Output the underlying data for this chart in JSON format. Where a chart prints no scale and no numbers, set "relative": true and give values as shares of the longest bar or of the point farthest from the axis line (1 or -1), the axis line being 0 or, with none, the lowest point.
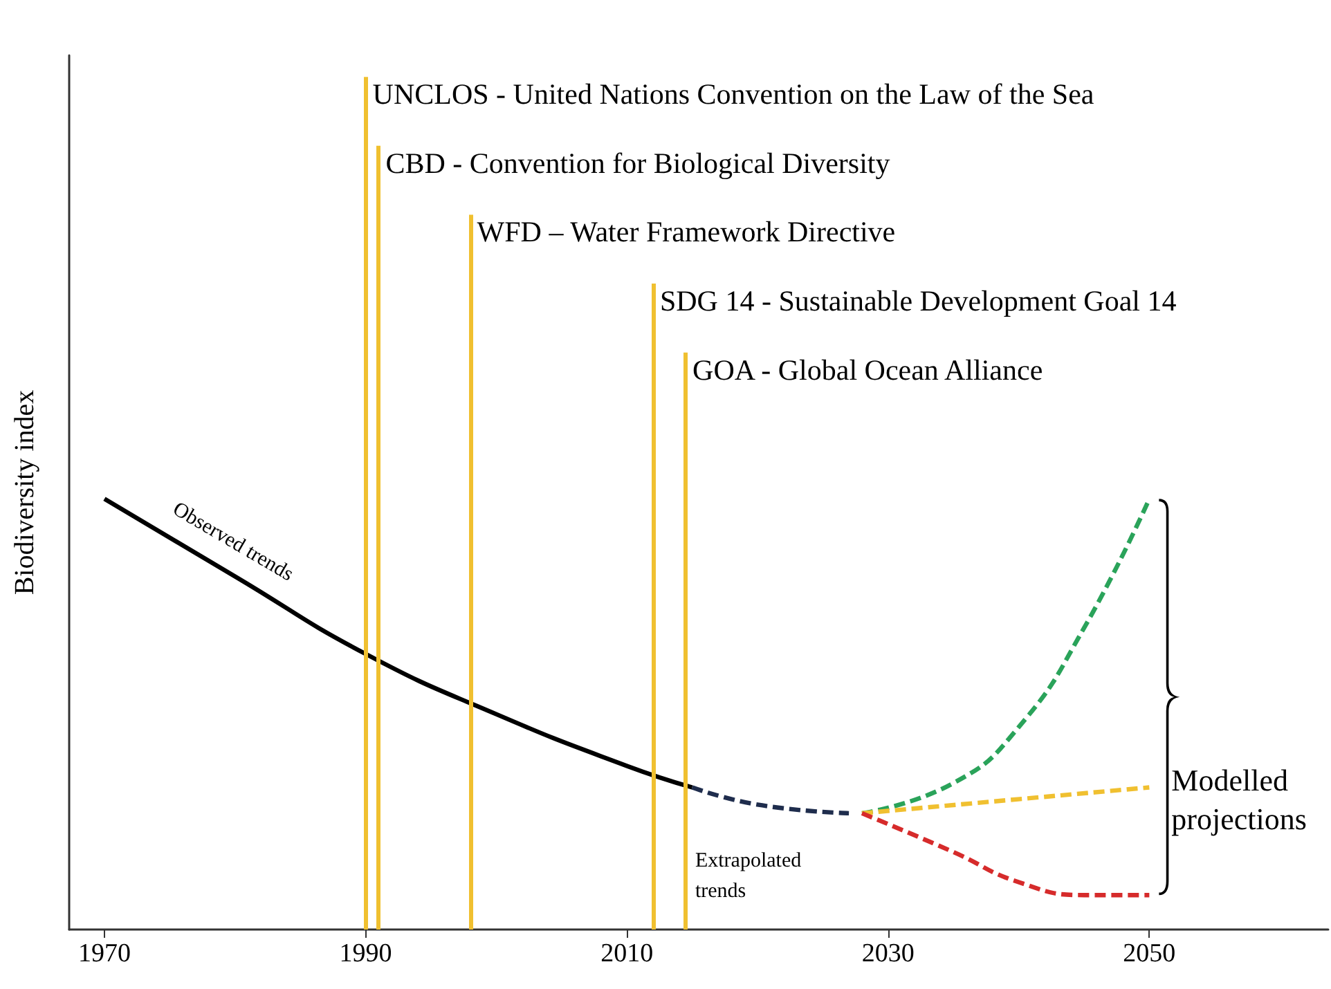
{
  "chart_data": {
    "type": "line",
    "relative": true,
    "ylabel": "Biodiversity index",
    "xlim": [
      1967.3,
      2063.7
    ],
    "xticks": [
      1970,
      1990,
      2010,
      2030,
      2050
    ],
    "grid": false,
    "marker": "none",
    "series": [
      {
        "color": "#000000",
        "line_style": "solid",
        "x": [
          1970,
          1980,
          1990,
          2000,
          2010,
          2015
        ],
        "values": [
          1.0,
          0.82,
          0.64,
          0.5,
          0.38,
          0.33
        ]
      },
      {
        "color": "#1f2d4d",
        "line_style": "dashed",
        "x": [
          2015,
          2020,
          2027
        ],
        "values": [
          0.33,
          0.29,
          0.27
        ]
      },
      {
        "color": "#2aa35a",
        "line_style": "dashed",
        "x": [
          2028,
          2035,
          2040,
          2045,
          2050
        ],
        "values": [
          0.27,
          0.34,
          0.47,
          0.7,
          1.0
        ]
      },
      {
        "color": "#f0c030",
        "line_style": "dashed",
        "x": [
          2028,
          2050
        ],
        "values": [
          0.27,
          0.33
        ]
      },
      {
        "color": "#d62b2b",
        "line_style": "dashed",
        "x": [
          2028,
          2035,
          2040,
          2045,
          2050
        ],
        "values": [
          0.27,
          0.18,
          0.11,
          0.08,
          0.08
        ]
      }
    ],
    "ref_lines": [
      {
        "axis": "x",
        "value": 1990,
        "label": "UNCLOS - United Nations Convention on the Law of the Sea",
        "color": "#f0c030"
      },
      {
        "axis": "x",
        "value": 1991,
        "label": "CBD - Convention for Biological Diversity",
        "color": "#f0c030"
      },
      {
        "axis": "x",
        "value": 1998,
        "label": "WFD – Water Framework Directive",
        "color": "#f0c030"
      },
      {
        "axis": "x",
        "value": 2012,
        "label": "SDG 14 - Sustainable Development Goal 14",
        "color": "#f0c030"
      },
      {
        "axis": "x",
        "value": 2014.5,
        "label": "GOA - Global Ocean Alliance",
        "color": "#f0c030"
      }
    ],
    "annotations": [
      {
        "text": "Observed trends",
        "x": 1980,
        "y": 0.82
      },
      {
        "text": "Extrapolated trends",
        "x": 2020,
        "y": 0.29
      },
      "Modelled projections"
    ]
  }
}
